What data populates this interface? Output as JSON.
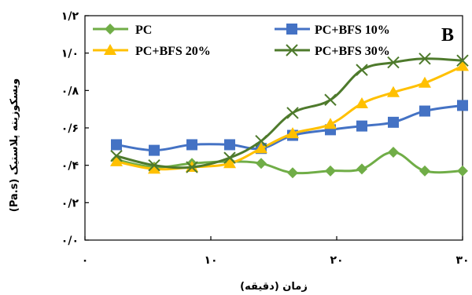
{
  "chart_data": {
    "type": "line",
    "panel_label": "B",
    "xlabel": "زمان (دقیقه)",
    "ylabel": "ویسکوزیته پلاستیک (Pa.s)",
    "xlim": [
      0,
      30
    ],
    "ylim": [
      0,
      1.2
    ],
    "x_ticks": [
      {
        "value": 0,
        "label": "۰"
      },
      {
        "value": 10,
        "label": "۱۰"
      },
      {
        "value": 20,
        "label": "۲۰"
      },
      {
        "value": 30,
        "label": "۳۰"
      }
    ],
    "y_ticks": [
      {
        "value": 0,
        "label": "۰/۰"
      },
      {
        "value": 0.2,
        "label": "۰/۲"
      },
      {
        "value": 0.4,
        "label": "۰/۴"
      },
      {
        "value": 0.6,
        "label": "۰/۶"
      },
      {
        "value": 0.8,
        "label": "۰/۸"
      },
      {
        "value": 1.0,
        "label": "۱/۰"
      },
      {
        "value": 1.2,
        "label": "۱/۲"
      }
    ],
    "grid": false,
    "legend_position": "top",
    "series": [
      {
        "name": "PC",
        "color": "#70ad47",
        "marker": "diamond",
        "x": [
          2.5,
          5.5,
          8.5,
          11.5,
          14,
          16.5,
          19.5,
          22,
          24.5,
          27,
          30
        ],
        "y": [
          0.43,
          0.39,
          0.41,
          0.42,
          0.41,
          0.36,
          0.37,
          0.38,
          0.47,
          0.37,
          0.37
        ]
      },
      {
        "name": "PC+BFS 10%",
        "color": "#4472c4",
        "marker": "square",
        "x": [
          2.5,
          5.5,
          8.5,
          11.5,
          14,
          16.5,
          19.5,
          22,
          24.5,
          27,
          30
        ],
        "y": [
          0.51,
          0.48,
          0.51,
          0.51,
          0.49,
          0.56,
          0.59,
          0.61,
          0.63,
          0.69,
          0.72
        ]
      },
      {
        "name": "PC+BFS 20%",
        "color": "#ffc000",
        "marker": "triangle",
        "x": [
          2.5,
          5.5,
          8.5,
          11.5,
          14,
          16.5,
          19.5,
          22,
          24.5,
          27,
          30
        ],
        "y": [
          0.42,
          0.38,
          0.39,
          0.41,
          0.49,
          0.57,
          0.62,
          0.73,
          0.79,
          0.84,
          0.93
        ]
      },
      {
        "name": "PC+BFS 30%",
        "color": "#4e7a2c",
        "marker": "x",
        "x": [
          2.5,
          5.5,
          8.5,
          11.5,
          14,
          16.5,
          19.5,
          22,
          24.5,
          27,
          30
        ],
        "y": [
          0.45,
          0.4,
          0.39,
          0.44,
          0.53,
          0.68,
          0.75,
          0.91,
          0.95,
          0.97,
          0.96
        ]
      }
    ]
  }
}
